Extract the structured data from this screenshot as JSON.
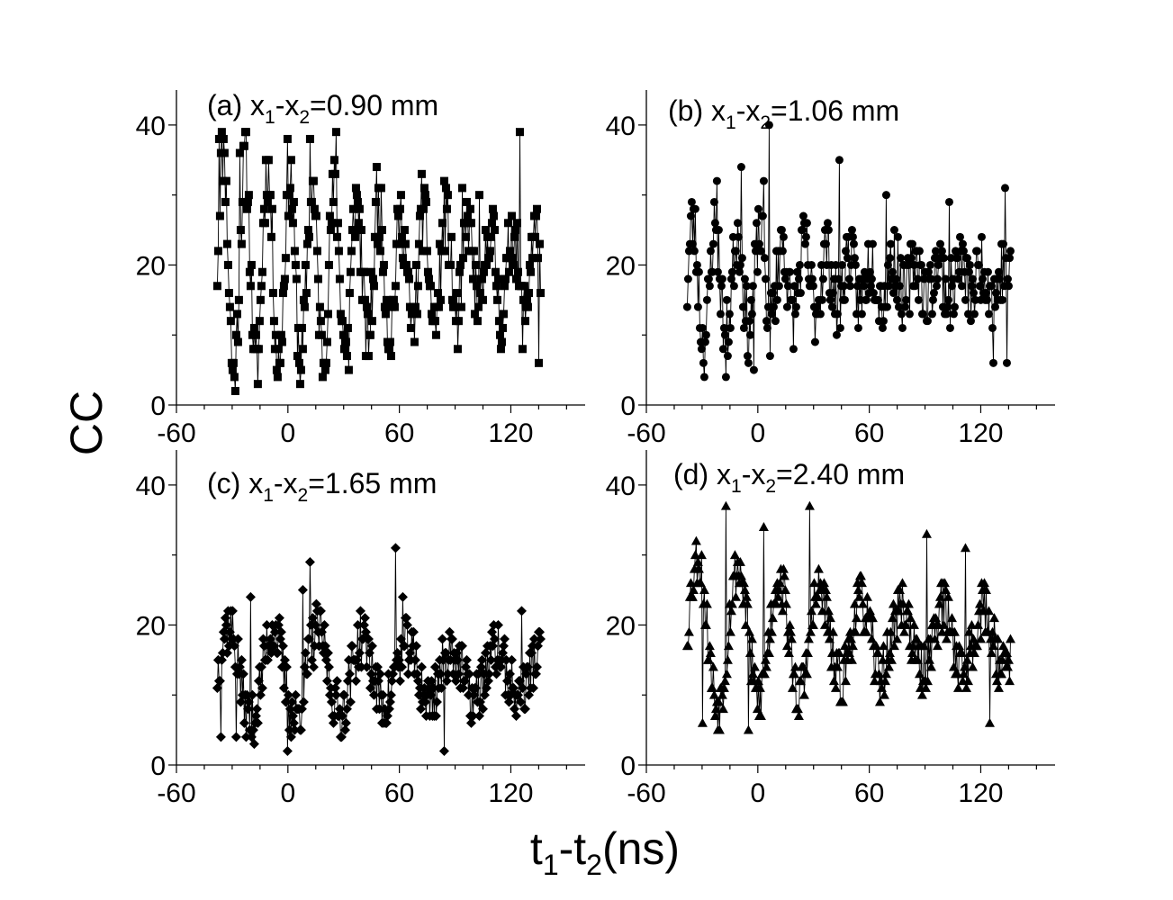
{
  "figure": {
    "ylabel": "CC",
    "xlabel_main": "t",
    "xlabel_sub1": "1",
    "xlabel_mid": "-t",
    "xlabel_sub2": "2",
    "xlabel_tail": "(ns)"
  },
  "chart_data": [
    {
      "type": "line",
      "panel": "a",
      "marker": "square",
      "annotation": {
        "prefix": "(a) x",
        "sub1": "1",
        "mid": "-x",
        "sub2": "2",
        "value": "=0.90 mm"
      },
      "xlim": [
        -60,
        160
      ],
      "ylim": [
        0,
        45
      ],
      "xticks": [
        -60,
        0,
        60,
        120
      ],
      "yticks": [
        0,
        20,
        40
      ],
      "x_range": [
        -38,
        136
      ],
      "period": 12,
      "envelope": [
        [
          -38,
          20,
          16
        ],
        [
          20,
          19,
          12
        ],
        [
          60,
          19,
          8
        ],
        [
          136,
          19,
          6
        ]
      ],
      "noise": 5,
      "n_points": 360,
      "seed": 11,
      "peaks": [
        [
          -37,
          38
        ],
        [
          -34,
          36
        ],
        [
          -26,
          36
        ],
        [
          -23,
          39
        ],
        [
          -12,
          35
        ],
        [
          0,
          38
        ],
        [
          12,
          38
        ],
        [
          26,
          39
        ],
        [
          48,
          34
        ],
        [
          72,
          33
        ],
        [
          84,
          32
        ],
        [
          94,
          31
        ],
        [
          103,
          30
        ],
        [
          125,
          39
        ],
        [
          135,
          6
        ],
        [
          33,
          5
        ],
        [
          -4,
          6
        ]
      ]
    },
    {
      "type": "line",
      "panel": "b",
      "marker": "circle",
      "annotation": {
        "prefix": "(b) x",
        "sub1": "1",
        "mid": "-x",
        "sub2": "2",
        "value": "=1.06 mm"
      },
      "xlim": [
        -60,
        160
      ],
      "ylim": [
        0,
        45
      ],
      "xticks": [
        -60,
        0,
        60,
        120
      ],
      "yticks": [
        0,
        20,
        40
      ],
      "x_range": [
        -38,
        136
      ],
      "period": 12,
      "envelope": [
        [
          -38,
          17,
          9
        ],
        [
          20,
          18,
          5
        ],
        [
          60,
          18,
          3
        ],
        [
          136,
          18,
          2
        ]
      ],
      "noise": 5,
      "n_points": 360,
      "seed": 23,
      "peaks": [
        [
          6,
          40
        ],
        [
          -22,
          32
        ],
        [
          -9,
          34
        ],
        [
          44,
          35
        ],
        [
          3,
          32
        ],
        [
          69,
          30
        ],
        [
          103,
          29
        ],
        [
          133,
          31
        ],
        [
          -17,
          4
        ],
        [
          -2,
          5
        ],
        [
          127,
          6
        ],
        [
          134,
          6
        ]
      ]
    },
    {
      "type": "line",
      "panel": "c",
      "marker": "diamond",
      "annotation": {
        "prefix": "(c) x",
        "sub1": "1",
        "mid": "-x",
        "sub2": "2",
        "value": "=1.65 mm"
      },
      "xlim": [
        -60,
        160
      ],
      "ylim": [
        0,
        45
      ],
      "xticks": [
        -60,
        0,
        60,
        120
      ],
      "yticks": [
        0,
        20,
        40
      ],
      "x_range": [
        -38,
        136
      ],
      "period": 24,
      "envelope": [
        [
          -38,
          13,
          7
        ],
        [
          20,
          13,
          6
        ],
        [
          60,
          13,
          4
        ],
        [
          136,
          13,
          3
        ]
      ],
      "noise": 4,
      "n_points": 360,
      "seed": 37,
      "peaks": [
        [
          58,
          31
        ],
        [
          12,
          29
        ],
        [
          -20,
          24
        ],
        [
          8,
          25
        ],
        [
          62,
          24
        ],
        [
          126,
          22
        ],
        [
          0,
          2
        ],
        [
          84,
          2
        ],
        [
          -36,
          4
        ],
        [
          -28,
          4
        ]
      ]
    },
    {
      "type": "line",
      "panel": "d",
      "marker": "triangle",
      "annotation": {
        "prefix": "(d) x",
        "sub1": "1",
        "mid": "-x",
        "sub2": "2",
        "value": "=2.40 mm"
      },
      "xlim": [
        -60,
        160
      ],
      "ylim": [
        0,
        45
      ],
      "xticks": [
        -60,
        0,
        60,
        120
      ],
      "yticks": [
        0,
        20,
        40
      ],
      "x_range": [
        -38,
        136
      ],
      "period": 22,
      "envelope": [
        [
          -38,
          19,
          11
        ],
        [
          20,
          18,
          8
        ],
        [
          60,
          18,
          5
        ],
        [
          136,
          18,
          4
        ]
      ],
      "noise": 4,
      "n_points": 360,
      "seed": 53,
      "peaks": [
        [
          -17,
          37
        ],
        [
          28,
          37
        ],
        [
          91,
          33
        ],
        [
          -33,
          32
        ],
        [
          3,
          34
        ],
        [
          112,
          31
        ],
        [
          -30,
          6
        ],
        [
          -5,
          5
        ],
        [
          22,
          7
        ],
        [
          125,
          6
        ]
      ]
    }
  ]
}
